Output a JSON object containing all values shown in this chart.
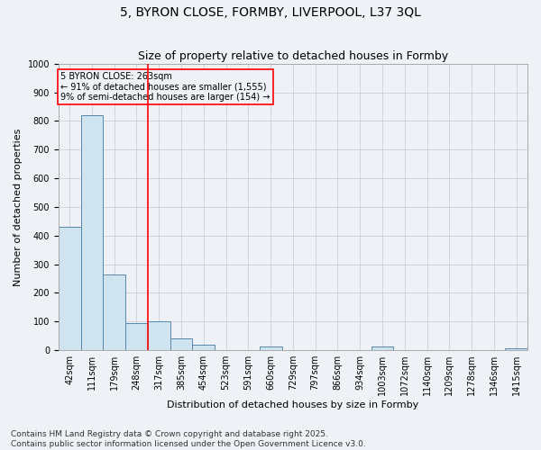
{
  "title": "5, BYRON CLOSE, FORMBY, LIVERPOOL, L37 3QL",
  "subtitle": "Size of property relative to detached houses in Formby",
  "xlabel": "Distribution of detached houses by size in Formby",
  "ylabel": "Number of detached properties",
  "categories": [
    "42sqm",
    "111sqm",
    "179sqm",
    "248sqm",
    "317sqm",
    "385sqm",
    "454sqm",
    "523sqm",
    "591sqm",
    "660sqm",
    "729sqm",
    "797sqm",
    "866sqm",
    "934sqm",
    "1003sqm",
    "1072sqm",
    "1140sqm",
    "1209sqm",
    "1278sqm",
    "1346sqm",
    "1415sqm"
  ],
  "values": [
    430,
    820,
    265,
    95,
    100,
    42,
    18,
    0,
    0,
    14,
    0,
    0,
    0,
    0,
    14,
    0,
    0,
    0,
    0,
    0,
    5
  ],
  "bar_color": "#d0e4f0",
  "bar_edge_color": "#5588aa",
  "red_line_x": 3.5,
  "ylim": [
    0,
    1000
  ],
  "yticks": [
    0,
    100,
    200,
    300,
    400,
    500,
    600,
    700,
    800,
    900,
    1000
  ],
  "annotation_title": "5 BYRON CLOSE: 263sqm",
  "annotation_line1": "← 91% of detached houses are smaller (1,555)",
  "annotation_line2": "9% of semi-detached houses are larger (154) →",
  "footnote1": "Contains HM Land Registry data © Crown copyright and database right 2025.",
  "footnote2": "Contains public sector information licensed under the Open Government Licence v3.0.",
  "background_color": "#eef2f7",
  "grid_color": "#c8c8d0",
  "title_fontsize": 10,
  "subtitle_fontsize": 9,
  "xlabel_fontsize": 8,
  "ylabel_fontsize": 8,
  "tick_fontsize": 7,
  "annotation_fontsize": 7,
  "footnote_fontsize": 6.5
}
